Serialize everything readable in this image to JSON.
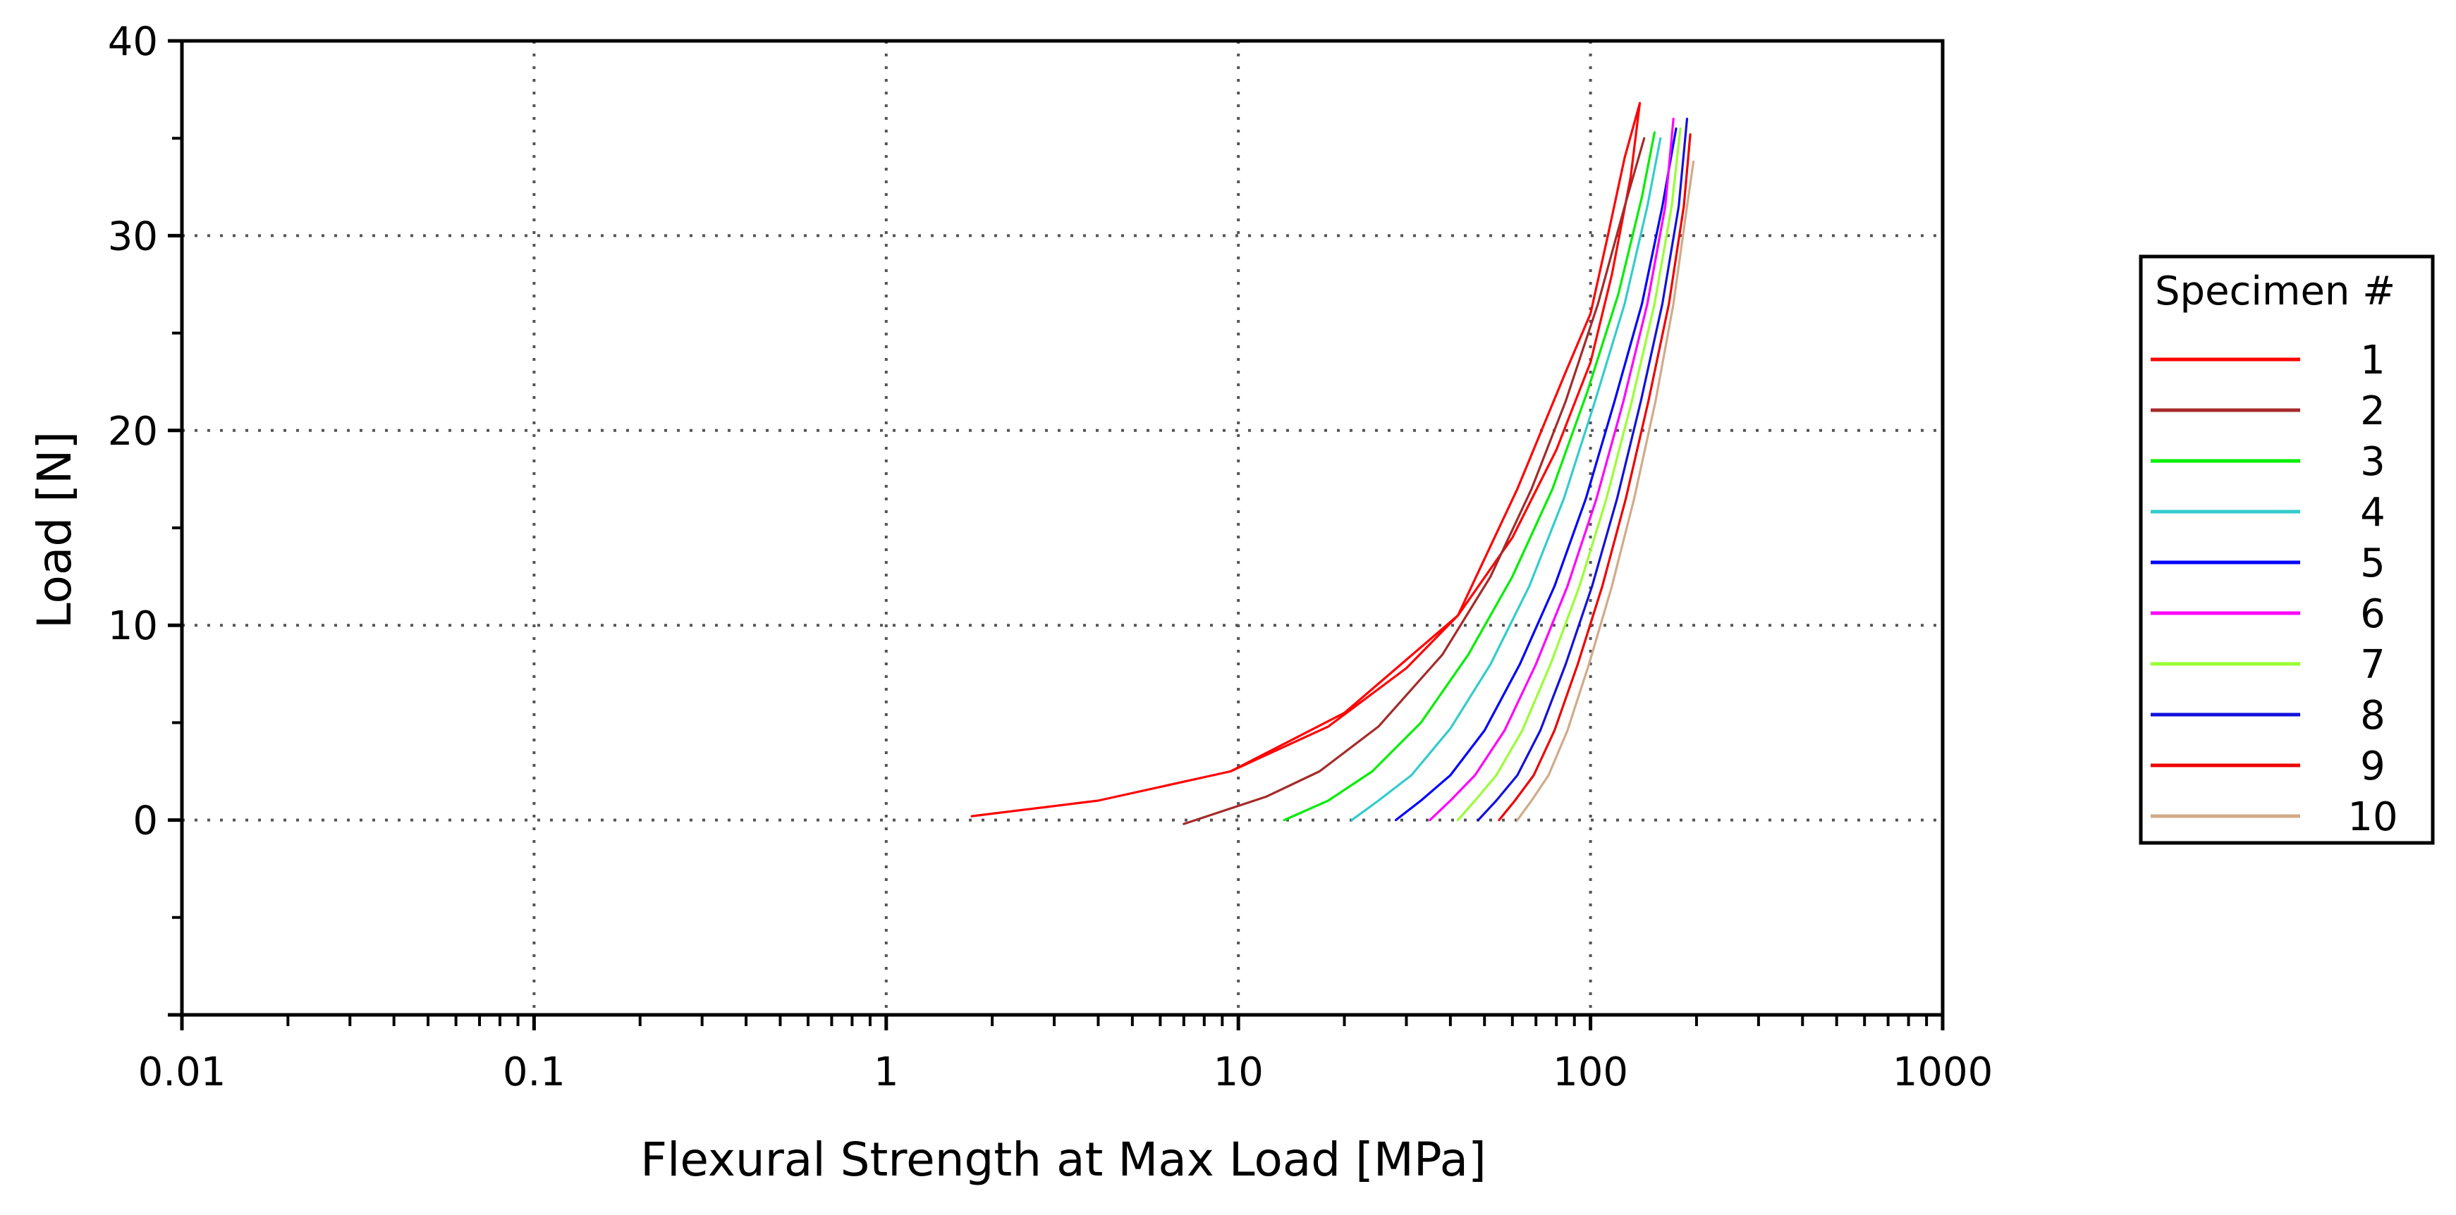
{
  "chart_data": {
    "type": "line",
    "title": "",
    "xlabel": "Flexural Strength at Max Load [MPa]",
    "ylabel": "Load [N]",
    "x_scale": "log",
    "xlim": [
      0.01,
      1000
    ],
    "ylim": [
      -10,
      40
    ],
    "x_ticks": [
      0.01,
      0.1,
      1,
      10,
      100,
      1000
    ],
    "x_tick_labels": [
      "0.01",
      "0.1",
      "1",
      "10",
      "100",
      "1000"
    ],
    "y_ticks": [
      0,
      10,
      20,
      30,
      40
    ],
    "y_tick_labels": [
      "0",
      "10",
      "20",
      "30",
      "40"
    ],
    "grid": true,
    "legend": {
      "title": "Specimen #",
      "placement": "right"
    },
    "series": [
      {
        "name": "1",
        "color": "#ff0000",
        "x": [
          1.75,
          4.0,
          9.5,
          20,
          42,
          62,
          85,
          100,
          112,
          125,
          138
        ],
        "y": [
          0.2,
          1.0,
          2.5,
          5.5,
          10.5,
          17,
          23,
          26,
          30,
          34,
          36.8
        ],
        "x2": [
          9.5,
          18,
          30,
          42,
          60,
          80,
          100,
          115,
          130,
          138
        ],
        "y2": [
          2.5,
          4.8,
          7.8,
          10.5,
          14.5,
          19,
          23.5,
          28,
          33,
          36.8
        ]
      },
      {
        "name": "2",
        "color": "#a52a2a",
        "x": [
          7.0,
          12,
          17,
          25,
          38,
          52,
          68,
          85,
          105,
          125,
          142
        ],
        "y": [
          -0.2,
          1.2,
          2.5,
          4.8,
          8.5,
          12.5,
          17,
          21.5,
          26.5,
          31.5,
          35
        ]
      },
      {
        "name": "3",
        "color": "#00ee00",
        "x": [
          13.5,
          18,
          24,
          33,
          45,
          60,
          78,
          98,
          120,
          140,
          152
        ],
        "y": [
          0.0,
          1.0,
          2.5,
          5.0,
          8.5,
          12.5,
          17,
          22,
          27,
          32,
          35.3
        ]
      },
      {
        "name": "4",
        "color": "#33cccc",
        "x": [
          21,
          25,
          31,
          40,
          52,
          67,
          84,
          103,
          125,
          145,
          158
        ],
        "y": [
          0.0,
          1.0,
          2.3,
          4.7,
          8.0,
          12,
          16.5,
          21.5,
          26.5,
          31.5,
          35
        ]
      },
      {
        "name": "5",
        "color": "#0000ff",
        "x": [
          28,
          33,
          40,
          50,
          63,
          79,
          97,
          117,
          140,
          160,
          175
        ],
        "y": [
          0.0,
          1.0,
          2.3,
          4.6,
          8.0,
          12,
          16.5,
          21.5,
          26.5,
          31.5,
          35.5
        ]
      },
      {
        "name": "6",
        "color": "#ff00ff",
        "x": [
          35,
          40,
          47,
          57,
          70,
          86,
          104,
          124,
          145,
          163,
          172
        ],
        "y": [
          0.0,
          1.0,
          2.3,
          4.6,
          8.0,
          12,
          16.5,
          21.5,
          26.5,
          31.5,
          36
        ]
      },
      {
        "name": "7",
        "color": "#99ff33",
        "x": [
          42,
          47,
          54,
          64,
          77,
          93,
          111,
          131,
          152,
          170,
          180
        ],
        "y": [
          0.0,
          1.0,
          2.3,
          4.6,
          8.0,
          12,
          16.5,
          21.5,
          26.5,
          31.5,
          35.5
        ]
      },
      {
        "name": "8",
        "color": "#1111dd",
        "x": [
          48,
          54,
          62,
          72,
          85,
          101,
          119,
          139,
          160,
          178,
          188
        ],
        "y": [
          0.0,
          1.0,
          2.3,
          4.6,
          8.0,
          12,
          16.5,
          21.5,
          26.5,
          31.5,
          36
        ]
      },
      {
        "name": "9",
        "color": "#ee0000",
        "x": [
          55,
          61,
          69,
          79,
          92,
          108,
          126,
          146,
          167,
          184,
          192
        ],
        "y": [
          0.0,
          1.0,
          2.3,
          4.6,
          8.0,
          12,
          16.5,
          21.5,
          26.5,
          31.5,
          35.2
        ]
      },
      {
        "name": "10",
        "color": "#d2aa88",
        "x": [
          62,
          68,
          76,
          86,
          99,
          115,
          133,
          153,
          172,
          188,
          196
        ],
        "y": [
          0.0,
          1.0,
          2.3,
          4.6,
          8.0,
          12,
          16.5,
          21.5,
          26.5,
          31.5,
          33.8
        ]
      }
    ]
  }
}
